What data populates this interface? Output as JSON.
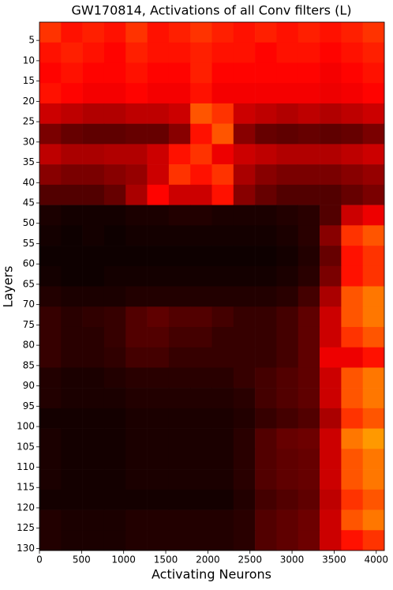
{
  "chart_data": {
    "type": "heatmap",
    "title": "GW170814, Activations of all Conv filters (L)",
    "xlabel": "Activating Neurons",
    "ylabel": "Layers",
    "colormap": "hot",
    "zlim": [
      0,
      1
    ],
    "y_inverted": true,
    "xlim": [
      0,
      4096
    ],
    "ylim": [
      0.5,
      130.5
    ],
    "xticks": [
      0,
      500,
      1000,
      1500,
      2000,
      2500,
      3000,
      3500,
      4000
    ],
    "yticks": [
      5,
      10,
      15,
      20,
      25,
      30,
      35,
      40,
      45,
      50,
      55,
      60,
      65,
      70,
      75,
      80,
      85,
      90,
      95,
      100,
      105,
      110,
      115,
      120,
      125,
      130
    ],
    "x_bins": [
      0,
      256,
      512,
      768,
      1024,
      1280,
      1536,
      1792,
      2048,
      2304,
      2560,
      2816,
      3072,
      3328,
      3584,
      3840,
      4096
    ],
    "y_bins": [
      0.5,
      5.5,
      10.5,
      15.5,
      20.5,
      25.5,
      30.5,
      35.5,
      40.5,
      45.5,
      50.5,
      55.5,
      60.5,
      65.5,
      70.5,
      75.5,
      80.5,
      85.5,
      90.5,
      95.5,
      100.5,
      105.5,
      110.5,
      115.5,
      120.5,
      125.5,
      130.5
    ],
    "z": [
      [
        0.45,
        0.4,
        0.42,
        0.4,
        0.45,
        0.4,
        0.42,
        0.45,
        0.42,
        0.4,
        0.42,
        0.4,
        0.42,
        0.4,
        0.42,
        0.45
      ],
      [
        0.4,
        0.42,
        0.4,
        0.38,
        0.42,
        0.4,
        0.4,
        0.42,
        0.4,
        0.4,
        0.38,
        0.4,
        0.4,
        0.38,
        0.4,
        0.42
      ],
      [
        0.38,
        0.4,
        0.38,
        0.38,
        0.4,
        0.38,
        0.38,
        0.42,
        0.38,
        0.38,
        0.38,
        0.38,
        0.38,
        0.36,
        0.38,
        0.4
      ],
      [
        0.4,
        0.38,
        0.36,
        0.36,
        0.38,
        0.36,
        0.36,
        0.4,
        0.36,
        0.36,
        0.36,
        0.36,
        0.36,
        0.35,
        0.36,
        0.38
      ],
      [
        0.3,
        0.28,
        0.26,
        0.26,
        0.28,
        0.28,
        0.3,
        0.5,
        0.45,
        0.3,
        0.28,
        0.26,
        0.28,
        0.26,
        0.28,
        0.3
      ],
      [
        0.18,
        0.15,
        0.14,
        0.14,
        0.15,
        0.15,
        0.2,
        0.4,
        0.5,
        0.2,
        0.15,
        0.14,
        0.15,
        0.14,
        0.15,
        0.18
      ],
      [
        0.28,
        0.25,
        0.25,
        0.26,
        0.26,
        0.3,
        0.4,
        0.45,
        0.35,
        0.3,
        0.28,
        0.26,
        0.26,
        0.26,
        0.28,
        0.3
      ],
      [
        0.2,
        0.18,
        0.18,
        0.2,
        0.22,
        0.3,
        0.45,
        0.4,
        0.45,
        0.25,
        0.2,
        0.18,
        0.18,
        0.18,
        0.2,
        0.22
      ],
      [
        0.12,
        0.12,
        0.12,
        0.15,
        0.25,
        0.38,
        0.3,
        0.3,
        0.4,
        0.2,
        0.15,
        0.12,
        0.12,
        0.12,
        0.15,
        0.18
      ],
      [
        0.04,
        0.03,
        0.03,
        0.03,
        0.04,
        0.04,
        0.05,
        0.05,
        0.04,
        0.04,
        0.04,
        0.05,
        0.06,
        0.12,
        0.3,
        0.35
      ],
      [
        0.03,
        0.02,
        0.03,
        0.02,
        0.03,
        0.03,
        0.03,
        0.03,
        0.03,
        0.03,
        0.03,
        0.04,
        0.06,
        0.2,
        0.45,
        0.5
      ],
      [
        0.02,
        0.02,
        0.02,
        0.02,
        0.02,
        0.02,
        0.02,
        0.02,
        0.02,
        0.02,
        0.02,
        0.03,
        0.05,
        0.15,
        0.4,
        0.45
      ],
      [
        0.03,
        0.02,
        0.02,
        0.03,
        0.03,
        0.03,
        0.03,
        0.03,
        0.03,
        0.03,
        0.03,
        0.04,
        0.06,
        0.18,
        0.4,
        0.45
      ],
      [
        0.05,
        0.04,
        0.04,
        0.04,
        0.05,
        0.05,
        0.05,
        0.05,
        0.05,
        0.05,
        0.05,
        0.06,
        0.1,
        0.25,
        0.5,
        0.55
      ],
      [
        0.08,
        0.06,
        0.07,
        0.08,
        0.12,
        0.14,
        0.12,
        0.12,
        0.1,
        0.08,
        0.08,
        0.1,
        0.14,
        0.3,
        0.5,
        0.55
      ],
      [
        0.08,
        0.06,
        0.06,
        0.08,
        0.12,
        0.12,
        0.1,
        0.1,
        0.08,
        0.08,
        0.08,
        0.1,
        0.14,
        0.3,
        0.45,
        0.5
      ],
      [
        0.08,
        0.06,
        0.06,
        0.07,
        0.1,
        0.1,
        0.08,
        0.08,
        0.08,
        0.08,
        0.08,
        0.1,
        0.14,
        0.35,
        0.35,
        0.4
      ],
      [
        0.05,
        0.04,
        0.04,
        0.05,
        0.06,
        0.06,
        0.06,
        0.06,
        0.06,
        0.08,
        0.1,
        0.12,
        0.14,
        0.3,
        0.5,
        0.55
      ],
      [
        0.05,
        0.04,
        0.04,
        0.04,
        0.05,
        0.05,
        0.05,
        0.05,
        0.05,
        0.06,
        0.1,
        0.12,
        0.14,
        0.3,
        0.5,
        0.55
      ],
      [
        0.03,
        0.03,
        0.03,
        0.03,
        0.04,
        0.04,
        0.04,
        0.04,
        0.04,
        0.05,
        0.08,
        0.1,
        0.12,
        0.25,
        0.45,
        0.5
      ],
      [
        0.04,
        0.03,
        0.03,
        0.03,
        0.04,
        0.04,
        0.04,
        0.04,
        0.04,
        0.06,
        0.12,
        0.15,
        0.16,
        0.3,
        0.55,
        0.6
      ],
      [
        0.04,
        0.03,
        0.03,
        0.03,
        0.04,
        0.04,
        0.04,
        0.04,
        0.04,
        0.06,
        0.12,
        0.14,
        0.15,
        0.3,
        0.5,
        0.55
      ],
      [
        0.04,
        0.03,
        0.03,
        0.03,
        0.04,
        0.04,
        0.04,
        0.04,
        0.04,
        0.06,
        0.12,
        0.14,
        0.15,
        0.3,
        0.5,
        0.55
      ],
      [
        0.03,
        0.03,
        0.03,
        0.03,
        0.03,
        0.03,
        0.03,
        0.03,
        0.03,
        0.05,
        0.1,
        0.12,
        0.14,
        0.28,
        0.45,
        0.5
      ],
      [
        0.05,
        0.04,
        0.04,
        0.04,
        0.05,
        0.05,
        0.05,
        0.05,
        0.05,
        0.06,
        0.12,
        0.14,
        0.16,
        0.3,
        0.5,
        0.55
      ],
      [
        0.05,
        0.04,
        0.04,
        0.04,
        0.05,
        0.05,
        0.05,
        0.05,
        0.05,
        0.06,
        0.12,
        0.14,
        0.16,
        0.3,
        0.4,
        0.45
      ]
    ]
  }
}
